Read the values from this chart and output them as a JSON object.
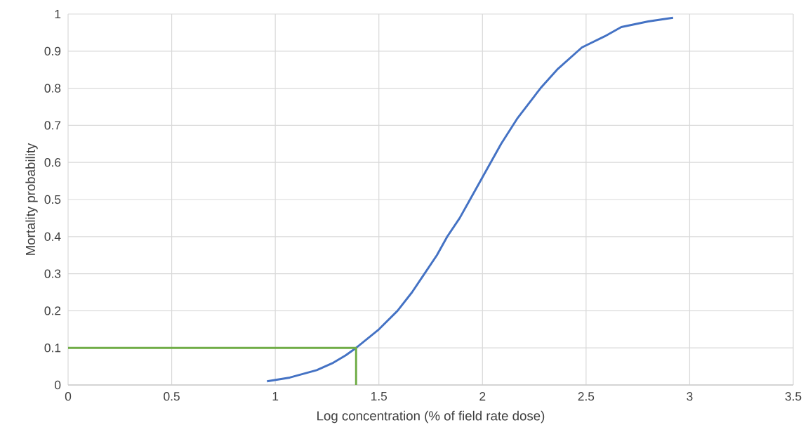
{
  "chart_data": {
    "type": "line",
    "xlabel": "Log concentration (% of field rate dose)",
    "ylabel": "Mortality probability",
    "xlim": [
      0,
      3.5
    ],
    "xticks": [
      0,
      0.5,
      1,
      1.5,
      2,
      2.5,
      3,
      3.5
    ],
    "ylim": [
      0,
      1
    ],
    "yticks": [
      0,
      0.1,
      0.2,
      0.3,
      0.4,
      0.5,
      0.6,
      0.7,
      0.8,
      0.9,
      1
    ],
    "grid": true,
    "legend": false,
    "marker": "none",
    "line_style": "solid",
    "series": [
      {
        "color": "#4472c4",
        "x": [
          0.96,
          1.07,
          1.135,
          1.2,
          1.28,
          1.34,
          1.39,
          1.5,
          1.59,
          1.66,
          1.72,
          1.78,
          1.83,
          1.89,
          1.94,
          2.0,
          2.09,
          2.17,
          2.28,
          2.36,
          2.48,
          2.59,
          2.67,
          2.8,
          2.92
        ],
        "values": [
          0.01,
          0.02,
          0.03,
          0.04,
          0.06,
          0.08,
          0.1,
          0.15,
          0.2,
          0.25,
          0.3,
          0.35,
          0.4,
          0.45,
          0.5,
          0.56,
          0.65,
          0.72,
          0.8,
          0.85,
          0.91,
          0.94,
          0.965,
          0.98,
          0.99
        ]
      },
      {
        "color": "#70ad47",
        "x": [
          0,
          1.39,
          1.39
        ],
        "values": [
          0.1,
          0.1,
          0
        ]
      }
    ]
  }
}
